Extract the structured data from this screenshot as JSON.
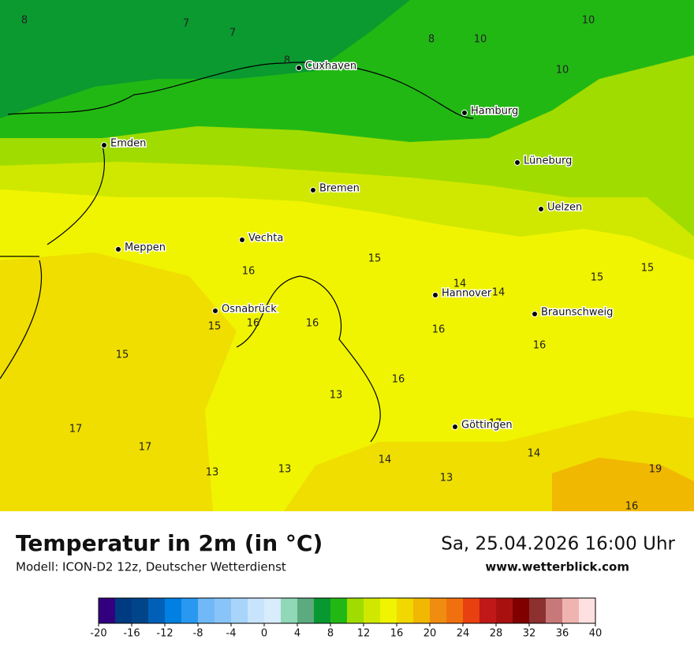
{
  "header": {
    "title": "Temperatur in 2m (in °C)",
    "subtitle": "Modell: ICON-D2 12z, Deutscher Wetterdienst",
    "datetime": "Sa, 25.04.2026 16:00 Uhr",
    "website": "www.wetterblick.com"
  },
  "cities": [
    "Cuxhaven",
    "Hamburg",
    "Emden",
    "Lüneburg",
    "Bremen",
    "Uelzen",
    "Vechta",
    "Meppen",
    "Hannover",
    "Osnabrück",
    "Braunschweig",
    "Göttingen"
  ],
  "map_values": [
    8,
    7,
    7,
    8,
    8,
    10,
    10,
    10,
    15,
    16,
    14,
    14,
    15,
    15,
    15,
    16,
    16,
    16,
    16,
    15,
    16,
    13,
    17,
    17,
    17,
    14,
    14,
    13,
    13,
    13,
    19,
    16
  ],
  "colorbar": {
    "ticks": [
      -20,
      -16,
      -12,
      -8,
      -4,
      0,
      4,
      8,
      12,
      16,
      20,
      24,
      28,
      32,
      36,
      40
    ],
    "colors": [
      "#32007f",
      "#003a80",
      "#00458a",
      "#0060b8",
      "#0080e0",
      "#2898f0",
      "#70b8f8",
      "#88c4f8",
      "#a8d4fa",
      "#c8e4fc",
      "#d8ecfc",
      "#90d8b8",
      "#5caa80",
      "#089830",
      "#22b814",
      "#a0dc00",
      "#d0e800",
      "#f0f400",
      "#f0d800",
      "#f0b800",
      "#f08c10",
      "#f07010",
      "#e84010",
      "#c01818",
      "#a81010",
      "#800000",
      "#8c3030",
      "#c87878",
      "#f0b4b0",
      "#ffe0e0"
    ]
  }
}
